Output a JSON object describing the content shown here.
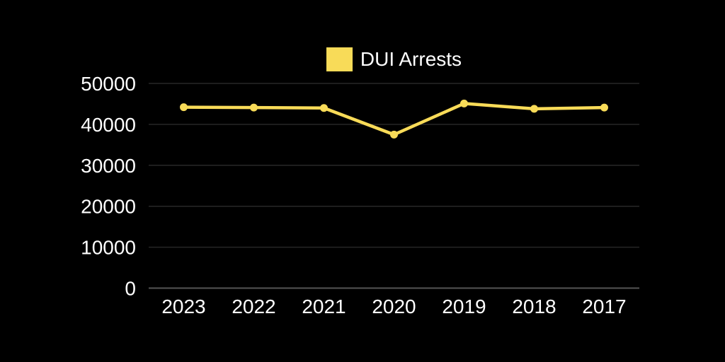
{
  "page": {
    "background": "#000000"
  },
  "legend": {
    "label": "DUI Arrests",
    "swatch_color": "#F8DB58"
  },
  "chart_data": {
    "type": "line",
    "title": "",
    "xlabel": "",
    "ylabel": "",
    "categories": [
      "2023",
      "2022",
      "2021",
      "2020",
      "2019",
      "2018",
      "2017"
    ],
    "series": [
      {
        "name": "DUI Arrests",
        "values": [
          44200,
          44100,
          44000,
          37500,
          45100,
          43800,
          44100
        ]
      }
    ],
    "ylim": [
      0,
      50000
    ],
    "yticks": [
      0,
      10000,
      20000,
      30000,
      40000,
      50000
    ],
    "grid": true,
    "legend_position": "top-center",
    "colors": {
      "background": "#000000",
      "series_line": "#F8DB58",
      "marker": "#F8DB58",
      "gridline": "#272727",
      "axis_line": "#555555",
      "tick_label": "#FFFFFF"
    }
  }
}
